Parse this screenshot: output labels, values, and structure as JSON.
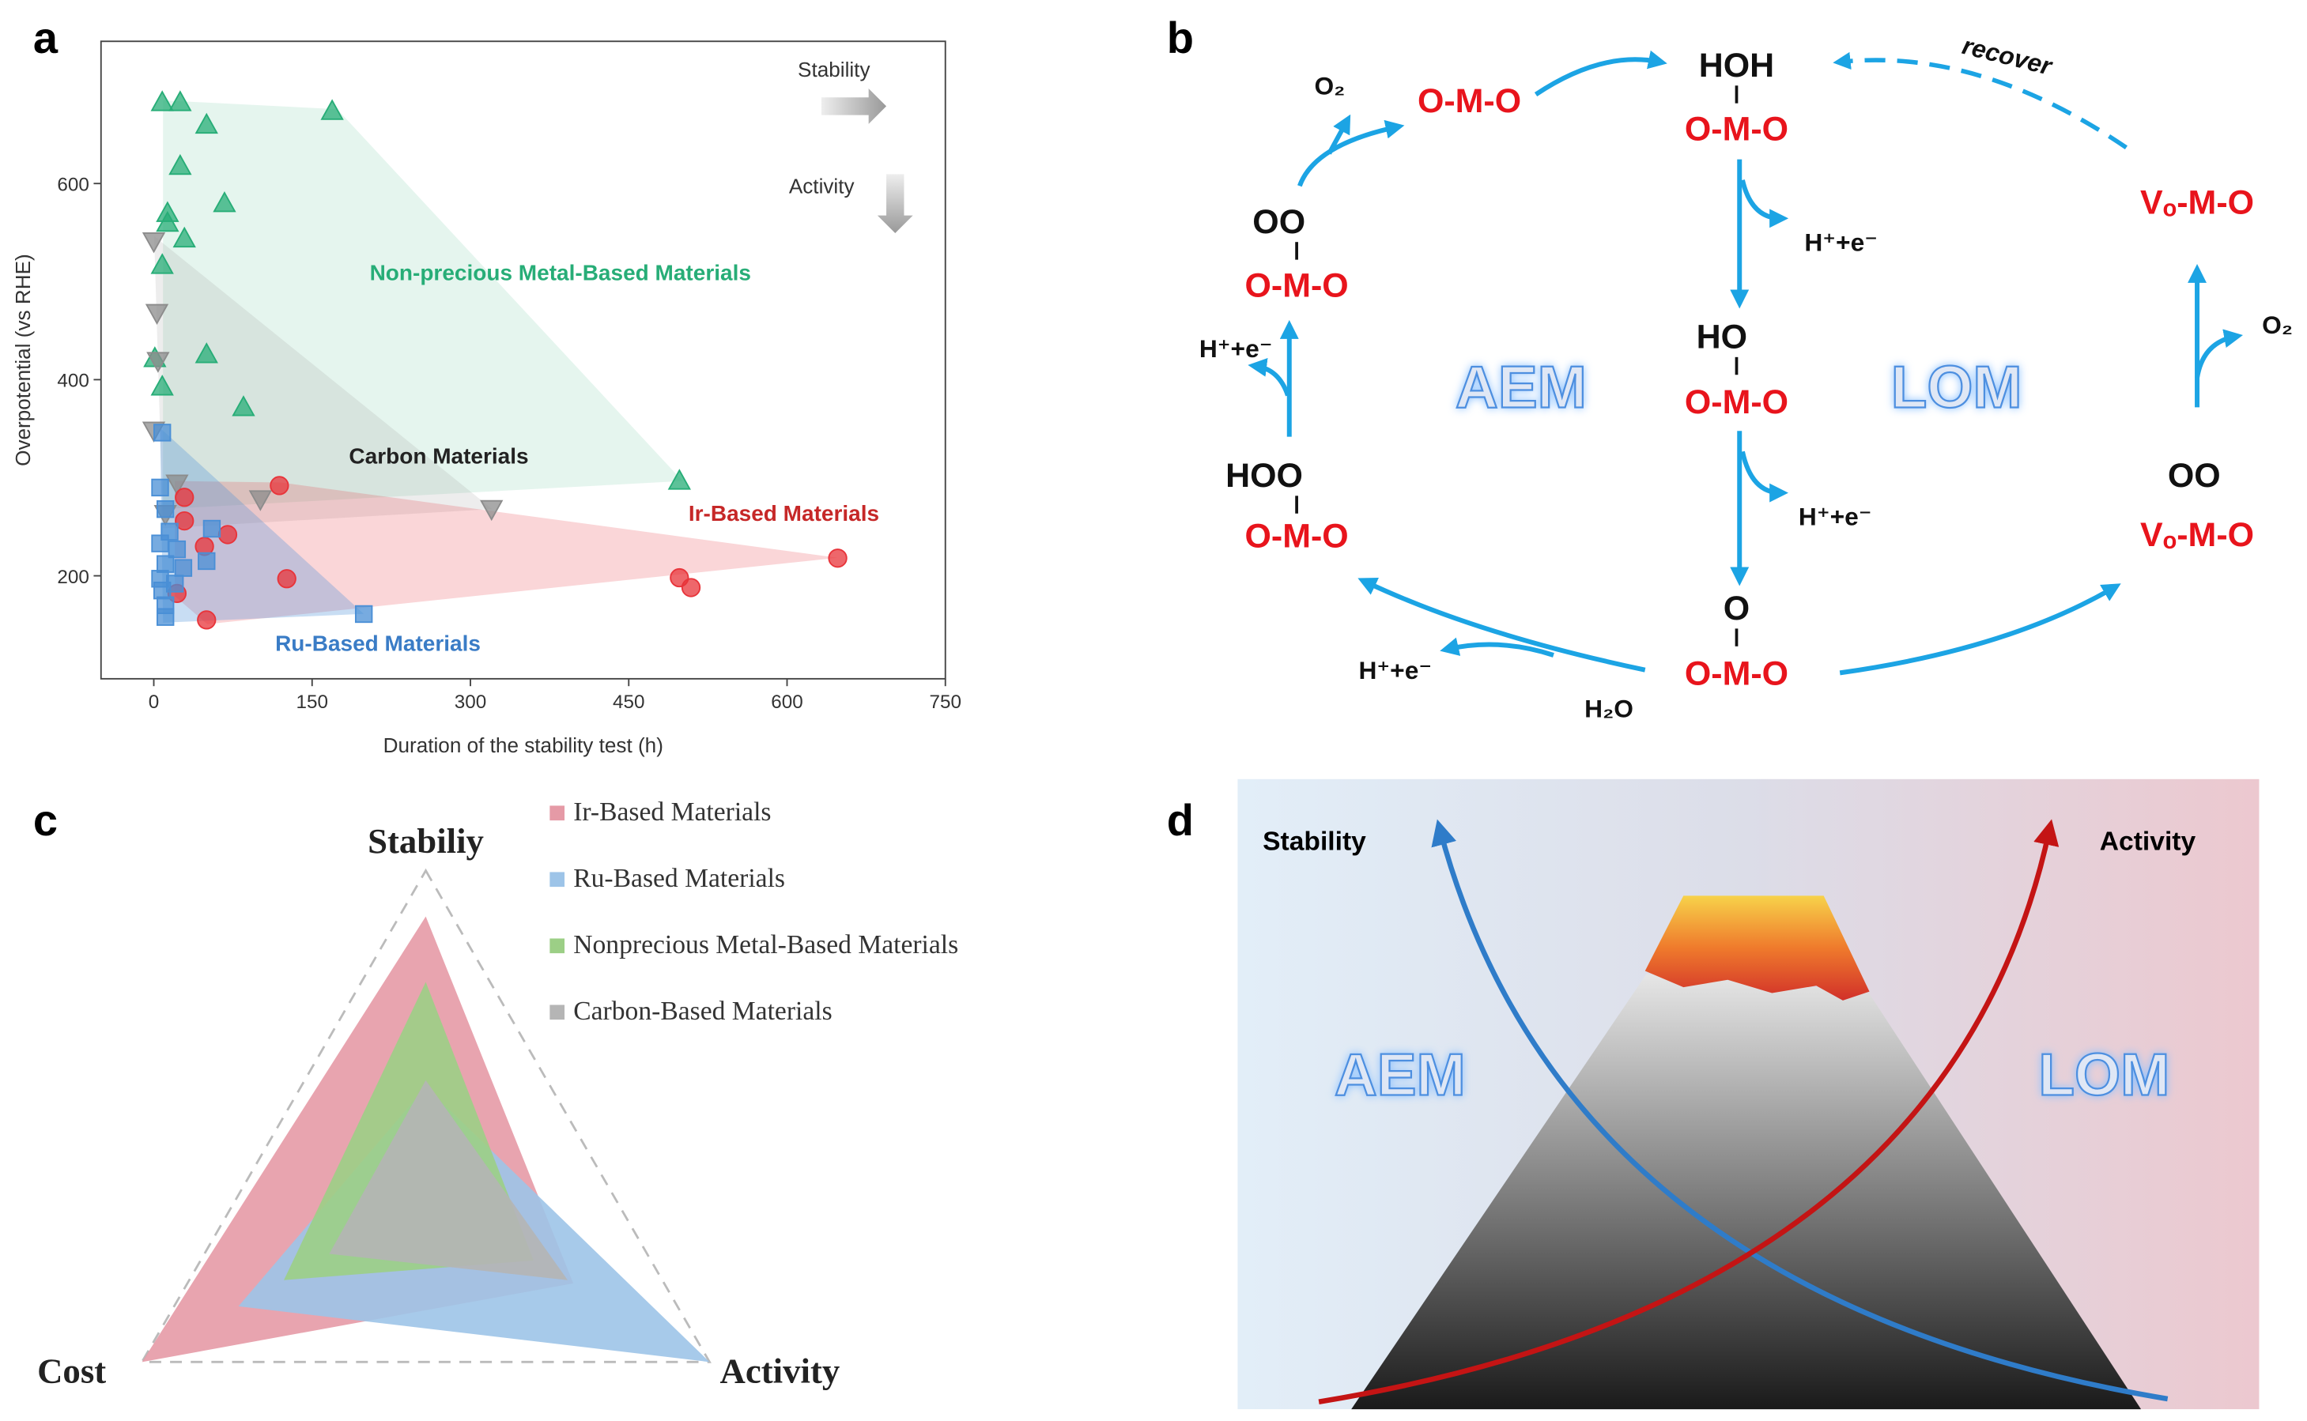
{
  "chart_data": [
    {
      "type": "scatter",
      "panel": "a",
      "xlabel": "Duration of the stability test (h)",
      "ylabel": "Overpotential (vs RHE)",
      "xlim": [
        -50,
        750
      ],
      "ylim": [
        95,
        745
      ],
      "xticks": [
        0,
        150,
        300,
        450,
        600,
        750
      ],
      "yticks": [
        200,
        400,
        600
      ],
      "annotations": [
        "Stability",
        "Activity"
      ],
      "series": [
        {
          "name": "Non-precious Metal-Based Materials",
          "color": "#27ad77",
          "marker": "triangle",
          "x": [
            8,
            25,
            169,
            50,
            25,
            13,
            13,
            29,
            67,
            8,
            50,
            8,
            1,
            85,
            498
          ],
          "values": [
            683,
            683,
            674,
            660,
            618,
            570,
            560,
            544,
            580,
            517,
            426,
            393,
            422,
            372,
            297
          ]
        },
        {
          "name": "Carbon Materials",
          "color": "#8c8c8c",
          "marker": "triangle-down",
          "x": [
            0,
            3,
            4,
            0,
            22,
            11,
            101,
            320
          ],
          "values": [
            541,
            468,
            419,
            348,
            294,
            263,
            278,
            268
          ]
        },
        {
          "name": "Ir-Based Materials",
          "color": "#e8343a",
          "marker": "circle",
          "x": [
            119,
            29,
            29,
            70,
            48,
            126,
            22,
            50,
            498,
            509,
            648
          ],
          "values": [
            292,
            280,
            256,
            242,
            230,
            197,
            182,
            155,
            198,
            188,
            218
          ]
        },
        {
          "name": "Ru-Based Materials",
          "color": "#4a8fd6",
          "marker": "square",
          "x": [
            8,
            6,
            11,
            15,
            6,
            22,
            11,
            6,
            20,
            28,
            8,
            11,
            11,
            55,
            50,
            199
          ],
          "values": [
            346,
            290,
            268,
            245,
            233,
            227,
            212,
            197,
            192,
            208,
            185,
            170,
            158,
            248,
            215,
            161
          ]
        }
      ]
    },
    {
      "type": "radar",
      "panel": "c",
      "axes": [
        "Stabiliy",
        "Activity",
        "Cost"
      ],
      "rlim": [
        0,
        1
      ],
      "series": [
        {
          "name": "Ir-Based Materials",
          "color": "#e59aa6",
          "values": [
            0.86,
            0.52,
            1.0
          ]
        },
        {
          "name": "Ru-Based Materials",
          "color": "#9dc4e8",
          "values": [
            0.34,
            1.0,
            0.66
          ]
        },
        {
          "name": "Nonprecious Metal-Based Materials",
          "color": "#9ccf86",
          "values": [
            0.66,
            0.38,
            0.5
          ]
        },
        {
          "name": "Carbon-Based Materials",
          "color": "#b5b5b5",
          "values": [
            0.36,
            0.5,
            0.34
          ]
        }
      ]
    }
  ],
  "diagram_b": {
    "panel": "b",
    "mechanisms": [
      "AEM",
      "LOM"
    ],
    "intermediates": [
      {
        "top": "HOH",
        "bottom": "O-M-O"
      },
      {
        "top": "HO",
        "bottom": "O-M-O"
      },
      {
        "top": "O",
        "bottom": "O-M-O"
      },
      {
        "top": "HOO",
        "bottom": "O-M-O"
      },
      {
        "top": "OO",
        "bottom": "O-M-O"
      },
      {
        "bottom": "O-M-O"
      },
      {
        "bottom": "Vₒ-M-O"
      },
      {
        "top": "OO",
        "bottom": "Vₒ-M-O"
      }
    ],
    "byproducts": [
      "O₂",
      "H⁺+e⁻",
      "H⁺+e⁻",
      "H⁺+e⁻",
      "H⁺+e⁻",
      "H₂O",
      "O₂"
    ],
    "recover": "recover"
  },
  "diagram_d": {
    "panel": "d",
    "trends": [
      "Stability",
      "Activity"
    ],
    "regions": [
      "AEM",
      "LOM"
    ]
  }
}
